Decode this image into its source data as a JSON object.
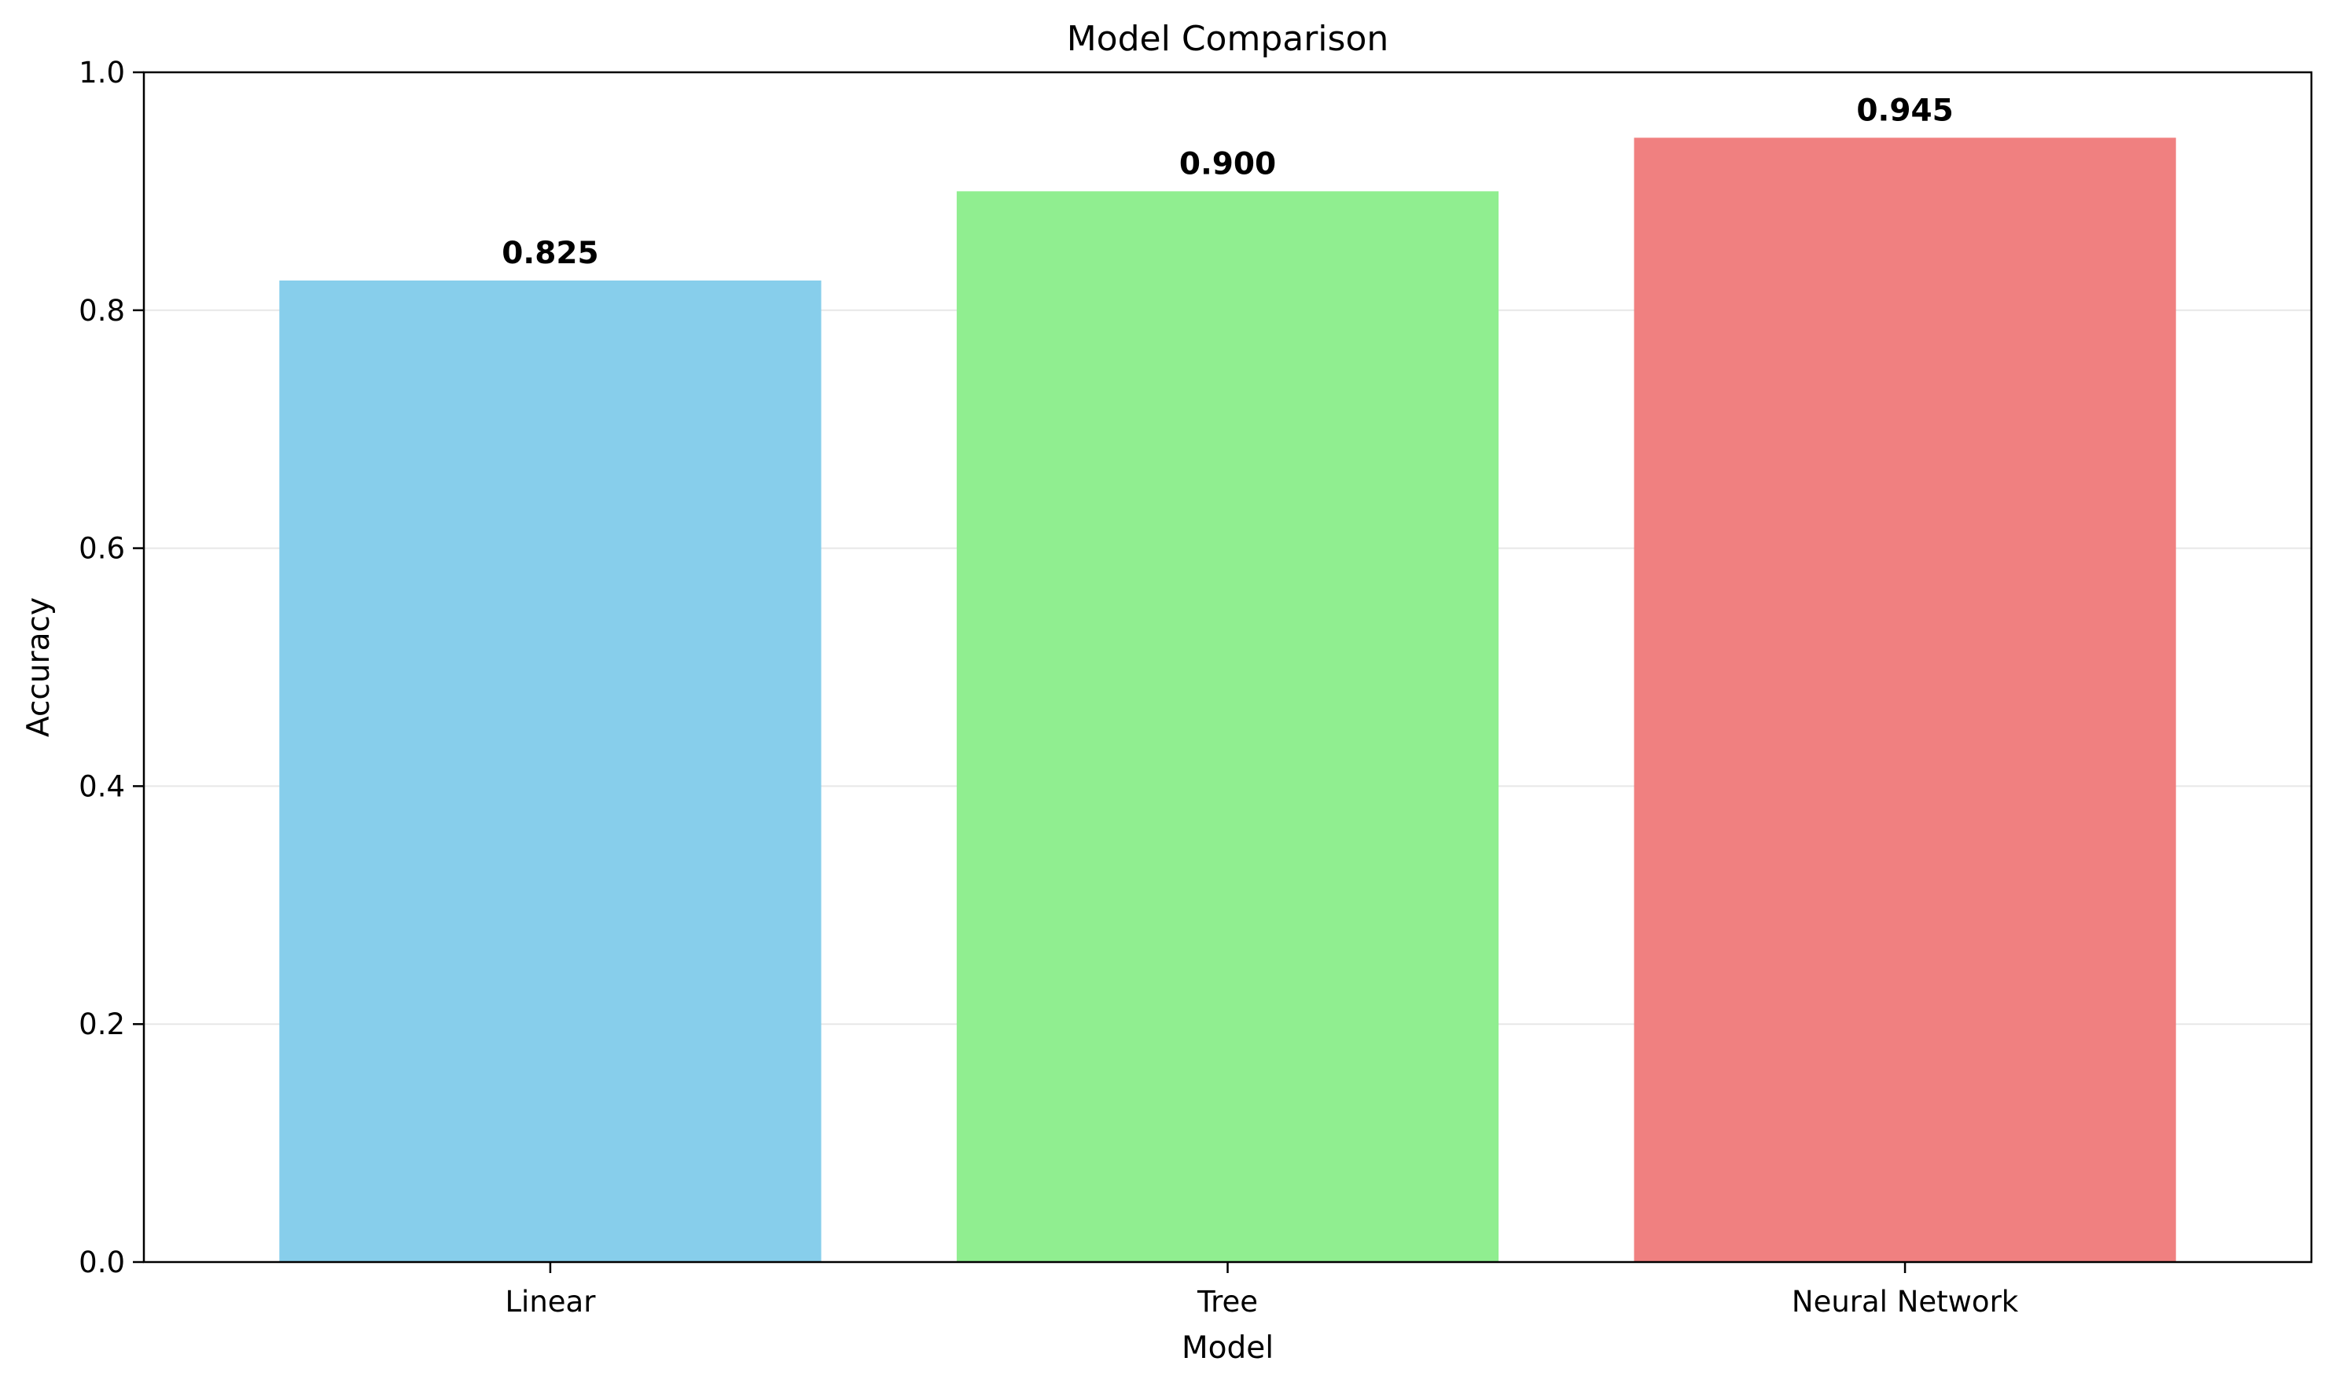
{
  "chart_data": {
    "type": "bar",
    "title": "Model Comparison",
    "xlabel": "Model",
    "ylabel": "Accuracy",
    "categories": [
      "Linear",
      "Tree",
      "Neural Network"
    ],
    "values": [
      0.825,
      0.9,
      0.945
    ],
    "value_labels": [
      "0.825",
      "0.900",
      "0.945"
    ],
    "colors": [
      "#87CEEB",
      "#90EE90",
      "#F08080"
    ],
    "ylim": [
      0,
      1.0
    ],
    "yticks": [
      0.0,
      0.2,
      0.4,
      0.6,
      0.8,
      1.0
    ],
    "ytick_labels": [
      "0.0",
      "0.2",
      "0.4",
      "0.6",
      "0.8",
      "1.0"
    ],
    "grid": "y",
    "legend": "none"
  }
}
